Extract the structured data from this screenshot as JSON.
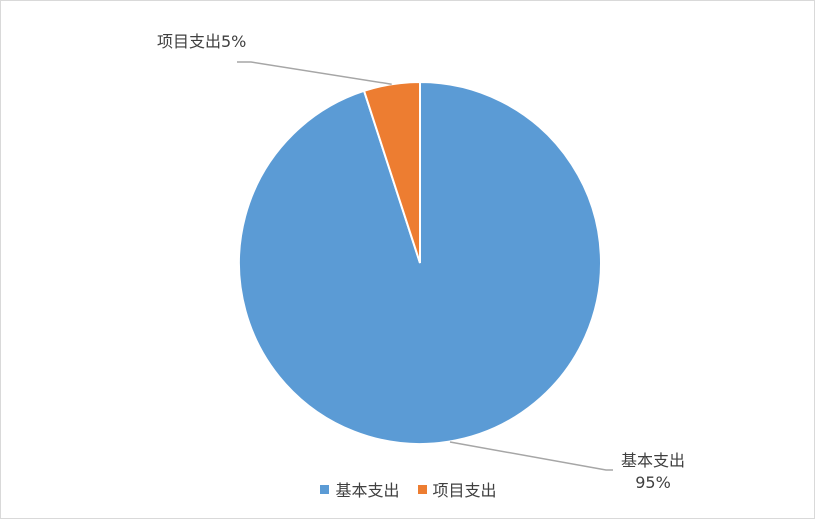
{
  "chart_data": {
    "type": "pie",
    "title": "",
    "series": [
      {
        "name": "基本支出",
        "value": 95,
        "percent_label": "95%",
        "color": "#5b9bd5"
      },
      {
        "name": "项目支出",
        "value": 5,
        "percent_label": "5%",
        "color": "#ed7d31"
      }
    ],
    "legend_position": "bottom",
    "data_labels": {
      "basic": {
        "name": "基本支出",
        "percent": "95%"
      },
      "project": "项目支出5%"
    }
  },
  "legend": [
    {
      "label": "基本支出",
      "color": "#5b9bd5"
    },
    {
      "label": "项目支出",
      "color": "#ed7d31"
    }
  ]
}
